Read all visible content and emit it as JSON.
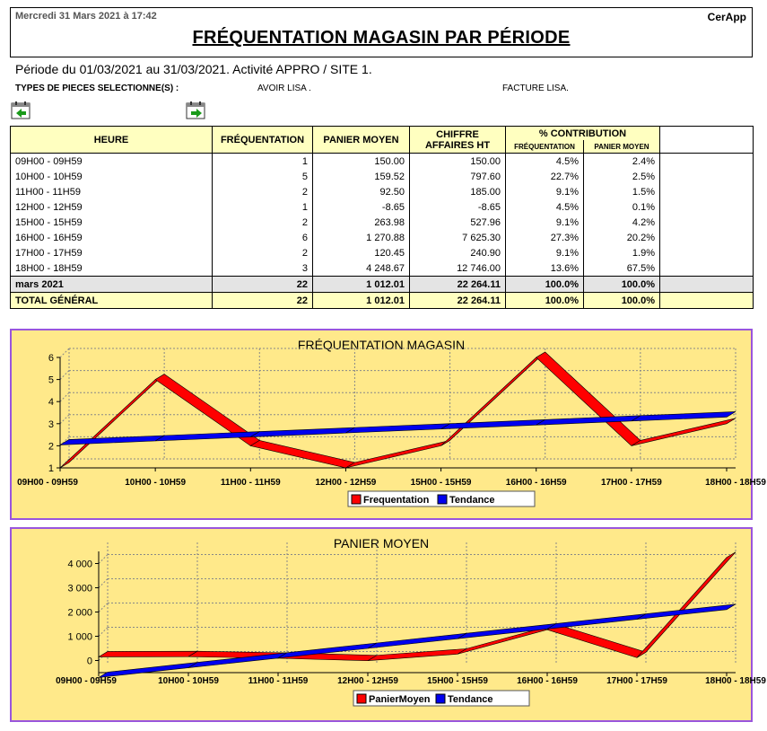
{
  "header": {
    "date": "Mercredi 31 Mars 2021 à 17:42",
    "app": "CerApp",
    "title": "FRÉQUENTATION MAGASIN PAR PÉRIODE"
  },
  "periode": "Période du 01/03/2021 au 31/03/2021. Activité APPRO / SITE 1.",
  "types": {
    "label": "TYPES DE PIECES SELECTIONNE(S) :",
    "items": [
      "AVOIR LISA .",
      "FACTURE LISA."
    ]
  },
  "table": {
    "headers": {
      "heure": "HEURE",
      "frequentation": "FRÉQUENTATION",
      "panier": "PANIER MOYEN",
      "ca_line1": "CHIFFRE",
      "ca_line2": "AFFAIRES HT",
      "contribution": "% CONTRIBUTION",
      "contrib_freq": "FRÉQUENTATION",
      "contrib_panier": "PANIER MOYEN"
    },
    "rows": [
      {
        "heure": "09H00 - 09H59",
        "freq": "1",
        "panier": "150.00",
        "ca": "150.00",
        "pct_freq": "4.5%",
        "pct_panier": "2.4%"
      },
      {
        "heure": "10H00 - 10H59",
        "freq": "5",
        "panier": "159.52",
        "ca": "797.60",
        "pct_freq": "22.7%",
        "pct_panier": "2.5%"
      },
      {
        "heure": "11H00 - 11H59",
        "freq": "2",
        "panier": "92.50",
        "ca": "185.00",
        "pct_freq": "9.1%",
        "pct_panier": "1.5%"
      },
      {
        "heure": "12H00 - 12H59",
        "freq": "1",
        "panier": "-8.65",
        "ca": "-8.65",
        "pct_freq": "4.5%",
        "pct_panier": "0.1%"
      },
      {
        "heure": "15H00 - 15H59",
        "freq": "2",
        "panier": "263.98",
        "ca": "527.96",
        "pct_freq": "9.1%",
        "pct_panier": "4.2%"
      },
      {
        "heure": "16H00 - 16H59",
        "freq": "6",
        "panier": "1 270.88",
        "ca": "7 625.30",
        "pct_freq": "27.3%",
        "pct_panier": "20.2%"
      },
      {
        "heure": "17H00 - 17H59",
        "freq": "2",
        "panier": "120.45",
        "ca": "240.90",
        "pct_freq": "9.1%",
        "pct_panier": "1.9%"
      },
      {
        "heure": "18H00 - 18H59",
        "freq": "3",
        "panier": "4 248.67",
        "ca": "12 746.00",
        "pct_freq": "13.6%",
        "pct_panier": "67.5%"
      }
    ],
    "subtotal": {
      "heure": "mars 2021",
      "freq": "22",
      "panier": "1 012.01",
      "ca": "22 264.11",
      "pct_freq": "100.0%",
      "pct_panier": "100.0%"
    },
    "total": {
      "heure": "TOTAL GÉNÉRAL",
      "freq": "22",
      "panier": "1 012.01",
      "ca": "22 264.11",
      "pct_freq": "100.0%",
      "pct_panier": "100.0%"
    }
  },
  "colors": {
    "series": "#ff0000",
    "trend": "#0000ee",
    "chart_bg": "#ffe98a",
    "border": "#9955dd",
    "header_bg": "#ffffc0"
  },
  "chart_data": [
    {
      "type": "line",
      "title": "FRÉQUENTATION MAGASIN",
      "categories": [
        "09H00 - 09H59",
        "10H00 - 10H59",
        "11H00 - 11H59",
        "12H00 - 12H59",
        "15H00 - 15H59",
        "16H00 - 16H59",
        "17H00 - 17H59",
        "18H00 - 18H59"
      ],
      "series": [
        {
          "name": "Frequentation",
          "values": [
            1,
            5,
            2,
            1,
            2,
            6,
            2,
            3
          ]
        },
        {
          "name": "Tendance",
          "values": [
            2.04,
            2.22,
            2.4,
            2.58,
            2.76,
            2.94,
            3.12,
            3.3
          ]
        }
      ],
      "ylim": [
        1,
        6
      ],
      "yticks": [
        "1",
        "2",
        "3",
        "4",
        "5",
        "6"
      ],
      "legend": "bottom-center"
    },
    {
      "type": "line",
      "title": "PANIER MOYEN",
      "categories": [
        "09H00 - 09H59",
        "10H00 - 10H59",
        "11H00 - 11H59",
        "12H00 - 12H59",
        "15H00 - 15H59",
        "16H00 - 16H59",
        "17H00 - 17H59",
        "18H00 - 18H59"
      ],
      "series": [
        {
          "name": "PanierMoyen",
          "values": [
            150,
            159.52,
            92.5,
            -8.65,
            263.98,
            1270.88,
            120.45,
            4248.67
          ]
        },
        {
          "name": "Tendance",
          "values": [
            -700,
            -300,
            100,
            500,
            900,
            1300,
            1700,
            2100
          ]
        }
      ],
      "ylim": [
        -500,
        4500
      ],
      "yticks": [
        "0",
        "1 000",
        "2 000",
        "3 000",
        "4 000"
      ],
      "legend": "bottom-center"
    }
  ]
}
